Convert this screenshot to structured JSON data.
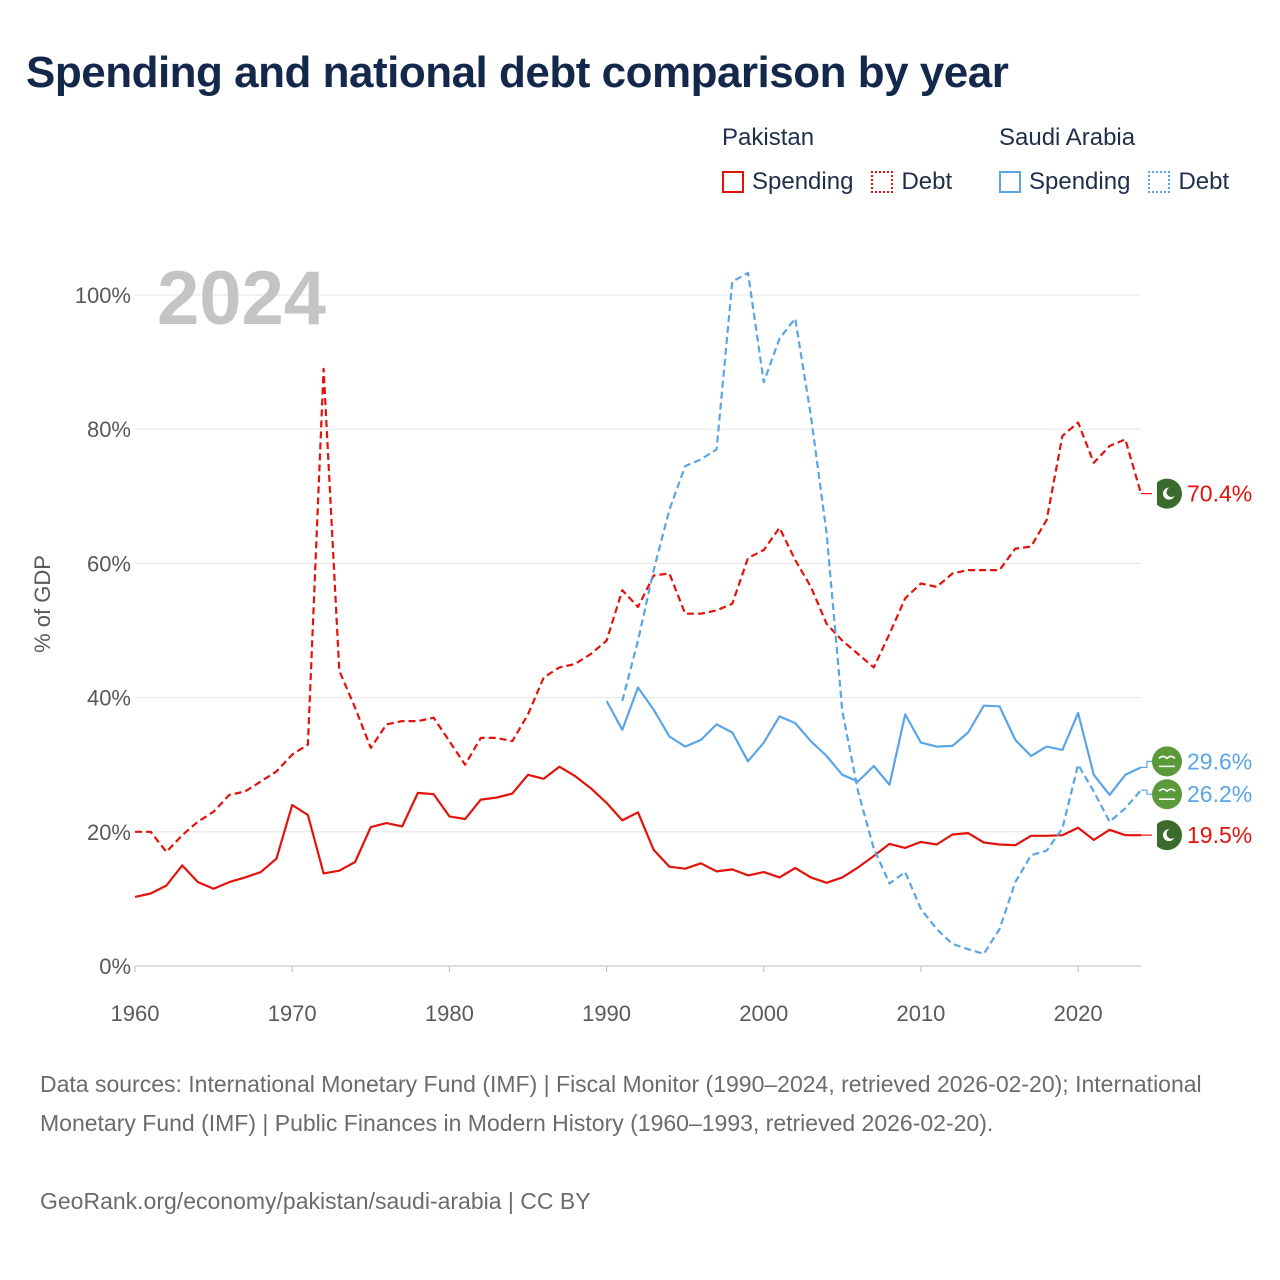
{
  "title": "Spending and national debt comparison by year",
  "legend": {
    "groups": [
      {
        "country": "Pakistan",
        "spending_label": "Spending",
        "debt_label": "Debt",
        "color": "#e3120b"
      },
      {
        "country": "Saudi Arabia",
        "spending_label": "Spending",
        "debt_label": "Debt",
        "color": "#5aa5e6"
      }
    ]
  },
  "footer": {
    "sources": "Data sources: International Monetary Fund (IMF) | Fiscal Monitor (1990–2024, retrieved 2026-02-20); International Monetary Fund (IMF) | Public Finances in Modern History (1960–1993, retrieved 2026-02-20).",
    "credit": "GeoRank.org/economy/pakistan/saudi-arabia | CC BY"
  },
  "chart_data": {
    "type": "line",
    "title": "Spending and national debt comparison by year",
    "year_watermark": "2024",
    "xlabel": "",
    "ylabel": "% of GDP",
    "xlim": [
      1960,
      2024
    ],
    "ylim": [
      0,
      100
    ],
    "x_ticks": [
      1960,
      1970,
      1980,
      1990,
      2000,
      2010,
      2020
    ],
    "y_ticks": [
      0,
      20,
      40,
      60,
      80,
      100
    ],
    "y_tick_labels": [
      "0%",
      "20%",
      "40%",
      "60%",
      "80%",
      "100%"
    ],
    "grid": true,
    "series": [
      {
        "name": "Pakistan Debt",
        "country": "Pakistan",
        "measure": "Debt",
        "color": "#e3120b",
        "dashed": true,
        "end_label": "70.4%",
        "flag": "pakistan-flag-icon",
        "points": [
          [
            1960,
            20
          ],
          [
            1961,
            20
          ],
          [
            1962,
            17
          ],
          [
            1963,
            19.5
          ],
          [
            1964,
            21.5
          ],
          [
            1965,
            23
          ],
          [
            1966,
            25.5
          ],
          [
            1967,
            26
          ],
          [
            1968,
            27.5
          ],
          [
            1969,
            29
          ],
          [
            1970,
            31.5
          ],
          [
            1971,
            33
          ],
          [
            1972,
            89
          ],
          [
            1973,
            44
          ],
          [
            1974,
            38.5
          ],
          [
            1975,
            32.5
          ],
          [
            1976,
            36
          ],
          [
            1977,
            36.5
          ],
          [
            1978,
            36.5
          ],
          [
            1979,
            37
          ],
          [
            1980,
            33.5
          ],
          [
            1981,
            30
          ],
          [
            1982,
            34
          ],
          [
            1983,
            34
          ],
          [
            1984,
            33.5
          ],
          [
            1985,
            37.5
          ],
          [
            1986,
            43
          ],
          [
            1987,
            44.5
          ],
          [
            1988,
            45
          ],
          [
            1989,
            46.5
          ],
          [
            1990,
            48.5
          ],
          [
            1991,
            56
          ],
          [
            1992,
            53.5
          ],
          [
            1993,
            58.2
          ],
          [
            1994,
            58.5
          ],
          [
            1995,
            52.5
          ],
          [
            1996,
            52.5
          ],
          [
            1997,
            53
          ],
          [
            1998,
            54
          ],
          [
            1999,
            60.8
          ],
          [
            2000,
            62
          ],
          [
            2001,
            65.3
          ],
          [
            2002,
            60.5
          ],
          [
            2003,
            56.5
          ],
          [
            2004,
            51
          ],
          [
            2005,
            48.5
          ],
          [
            2006,
            46.5
          ],
          [
            2007,
            44.5
          ],
          [
            2008,
            49.5
          ],
          [
            2009,
            54.8
          ],
          [
            2010,
            57
          ],
          [
            2011,
            56.5
          ],
          [
            2012,
            58.5
          ],
          [
            2013,
            59
          ],
          [
            2014,
            59
          ],
          [
            2015,
            59
          ],
          [
            2016,
            62.2
          ],
          [
            2017,
            62.5
          ],
          [
            2018,
            66.5
          ],
          [
            2019,
            79
          ],
          [
            2020,
            81
          ],
          [
            2021,
            75
          ],
          [
            2022,
            77.5
          ],
          [
            2023,
            78.5
          ],
          [
            2024,
            70.4
          ]
        ]
      },
      {
        "name": "Pakistan Spending",
        "country": "Pakistan",
        "measure": "Spending",
        "color": "#e3120b",
        "dashed": false,
        "end_label": "19.5%",
        "flag": "pakistan-flag-icon",
        "points": [
          [
            1960,
            10.3
          ],
          [
            1961,
            10.8
          ],
          [
            1962,
            12
          ],
          [
            1963,
            15
          ],
          [
            1964,
            12.5
          ],
          [
            1965,
            11.5
          ],
          [
            1966,
            12.5
          ],
          [
            1967,
            13.2
          ],
          [
            1968,
            14
          ],
          [
            1969,
            16
          ],
          [
            1970,
            24
          ],
          [
            1971,
            22.5
          ],
          [
            1972,
            13.8
          ],
          [
            1973,
            14.2
          ],
          [
            1974,
            15.5
          ],
          [
            1975,
            20.7
          ],
          [
            1976,
            21.3
          ],
          [
            1977,
            20.8
          ],
          [
            1978,
            25.8
          ],
          [
            1979,
            25.6
          ],
          [
            1980,
            22.3
          ],
          [
            1981,
            21.9
          ],
          [
            1982,
            24.8
          ],
          [
            1983,
            25.1
          ],
          [
            1984,
            25.7
          ],
          [
            1985,
            28.5
          ],
          [
            1986,
            27.9
          ],
          [
            1987,
            29.7
          ],
          [
            1988,
            28.3
          ],
          [
            1989,
            26.5
          ],
          [
            1990,
            24.3
          ],
          [
            1991,
            21.7
          ],
          [
            1992,
            22.9
          ],
          [
            1993,
            17.3
          ],
          [
            1994,
            14.8
          ],
          [
            1995,
            14.5
          ],
          [
            1996,
            15.3
          ],
          [
            1997,
            14.1
          ],
          [
            1998,
            14.4
          ],
          [
            1999,
            13.5
          ],
          [
            2000,
            14
          ],
          [
            2001,
            13.2
          ],
          [
            2002,
            14.6
          ],
          [
            2003,
            13.2
          ],
          [
            2004,
            12.4
          ],
          [
            2005,
            13.2
          ],
          [
            2006,
            14.7
          ],
          [
            2007,
            16.4
          ],
          [
            2008,
            18.2
          ],
          [
            2009,
            17.6
          ],
          [
            2010,
            18.5
          ],
          [
            2011,
            18.1
          ],
          [
            2012,
            19.6
          ],
          [
            2013,
            19.8
          ],
          [
            2014,
            18.4
          ],
          [
            2015,
            18.1
          ],
          [
            2016,
            18
          ],
          [
            2017,
            19.4
          ],
          [
            2018,
            19.4
          ],
          [
            2019,
            19.5
          ],
          [
            2020,
            20.6
          ],
          [
            2021,
            18.8
          ],
          [
            2022,
            20.3
          ],
          [
            2023,
            19.5
          ],
          [
            2024,
            19.5
          ]
        ]
      },
      {
        "name": "Saudi Arabia Debt",
        "country": "Saudi Arabia",
        "measure": "Debt",
        "color": "#5aa5e6",
        "dashed": true,
        "end_label": "26.2%",
        "flag": "saudi-arabia-flag-icon",
        "points": [
          [
            1991,
            39.5
          ],
          [
            1992,
            48.5
          ],
          [
            1993,
            59
          ],
          [
            1994,
            68
          ],
          [
            1995,
            74.5
          ],
          [
            1996,
            75.5
          ],
          [
            1997,
            77
          ],
          [
            1998,
            102
          ],
          [
            1999,
            103.3
          ],
          [
            2000,
            87
          ],
          [
            2001,
            93.5
          ],
          [
            2002,
            96.5
          ],
          [
            2003,
            82
          ],
          [
            2004,
            64.5
          ],
          [
            2005,
            38
          ],
          [
            2006,
            26
          ],
          [
            2007,
            17.5
          ],
          [
            2008,
            12.3
          ],
          [
            2009,
            14
          ],
          [
            2010,
            8.5
          ],
          [
            2011,
            5.5
          ],
          [
            2012,
            3.3
          ],
          [
            2013,
            2.5
          ],
          [
            2014,
            1.8
          ],
          [
            2015,
            5.5
          ],
          [
            2016,
            12.5
          ],
          [
            2017,
            16.5
          ],
          [
            2018,
            17.2
          ],
          [
            2019,
            20.5
          ],
          [
            2020,
            30
          ],
          [
            2021,
            26
          ],
          [
            2022,
            21.5
          ],
          [
            2023,
            23.5
          ],
          [
            2024,
            26.2
          ]
        ]
      },
      {
        "name": "Saudi Arabia Spending",
        "country": "Saudi Arabia",
        "measure": "Spending",
        "color": "#5aa5e6",
        "dashed": false,
        "end_label": "29.6%",
        "flag": "saudi-arabia-flag-icon",
        "points": [
          [
            1990,
            39.5
          ],
          [
            1991,
            35.2
          ],
          [
            1992,
            41.5
          ],
          [
            1993,
            38.2
          ],
          [
            1994,
            34.2
          ],
          [
            1995,
            32.7
          ],
          [
            1996,
            33.7
          ],
          [
            1997,
            36
          ],
          [
            1998,
            34.8
          ],
          [
            1999,
            30.5
          ],
          [
            2000,
            33.3
          ],
          [
            2001,
            37.2
          ],
          [
            2002,
            36.2
          ],
          [
            2003,
            33.5
          ],
          [
            2004,
            31.3
          ],
          [
            2005,
            28.5
          ],
          [
            2006,
            27.5
          ],
          [
            2007,
            29.8
          ],
          [
            2008,
            27
          ],
          [
            2009,
            37.5
          ],
          [
            2010,
            33.3
          ],
          [
            2011,
            32.7
          ],
          [
            2012,
            32.8
          ],
          [
            2013,
            34.8
          ],
          [
            2014,
            38.8
          ],
          [
            2015,
            38.7
          ],
          [
            2016,
            33.7
          ],
          [
            2017,
            31.3
          ],
          [
            2018,
            32.7
          ],
          [
            2019,
            32.2
          ],
          [
            2020,
            37.7
          ],
          [
            2021,
            28.5
          ],
          [
            2022,
            25.5
          ],
          [
            2023,
            28.5
          ],
          [
            2024,
            29.6
          ]
        ]
      }
    ]
  }
}
